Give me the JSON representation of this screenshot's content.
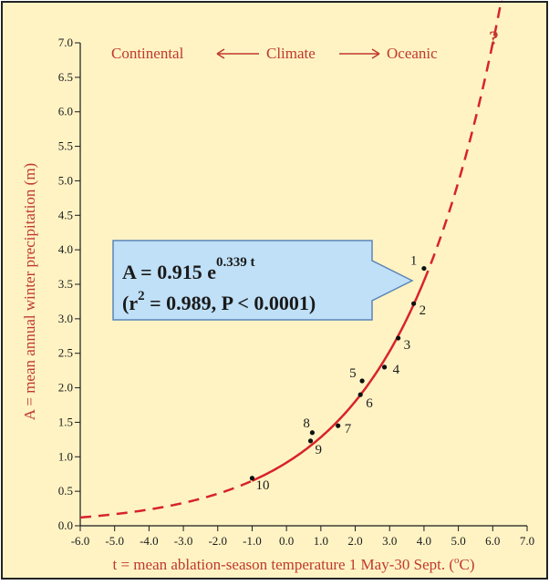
{
  "chart_data": {
    "type": "scatter",
    "xlabel": "t = mean ablation-season temperature 1 May-30 Sept. (°C)",
    "xlabel_main": "t = mean ablation-season temperature 1 May-30 Sept. (",
    "xlabel_o": "o",
    "xlabel_end": "C)",
    "ylabel": "A = mean annual winter precipitation (m)",
    "xlim": [
      -6.0,
      7.0
    ],
    "ylim": [
      0.0,
      7.0
    ],
    "x_ticks": [
      "-6.0",
      "-5.0",
      "-4.0",
      "-3.0",
      "-2.0",
      "-1.0",
      "0.0",
      "1.0",
      "2.0",
      "3.0",
      "4.0",
      "5.0",
      "6.0",
      "7.0"
    ],
    "y_ticks": [
      "0.0",
      "0.5",
      "1.0",
      "1.5",
      "2.0",
      "2.5",
      "3.0",
      "3.5",
      "4.0",
      "4.5",
      "5.0",
      "5.5",
      "6.0",
      "6.5",
      "7.0"
    ],
    "grid": false,
    "series": [
      {
        "points": [
          {
            "label": "1",
            "x": 4.0,
            "y": 3.73
          },
          {
            "label": "2",
            "x": 3.7,
            "y": 3.22
          },
          {
            "label": "3",
            "x": 3.25,
            "y": 2.72
          },
          {
            "label": "4",
            "x": 2.85,
            "y": 2.3
          },
          {
            "label": "5",
            "x": 2.2,
            "y": 2.1
          },
          {
            "label": "6",
            "x": 2.15,
            "y": 1.9
          },
          {
            "label": "7",
            "x": 1.5,
            "y": 1.45
          },
          {
            "label": "8",
            "x": 0.75,
            "y": 1.35
          },
          {
            "label": "9",
            "x": 0.7,
            "y": 1.23
          },
          {
            "label": "10",
            "x": -1.0,
            "y": 0.69
          }
        ]
      }
    ],
    "fit": {
      "a": 0.915,
      "b": 0.339,
      "solid_range": [
        -1.0,
        4.0
      ],
      "dashed_range": [
        -6.0,
        6.85
      ]
    },
    "annotations": {
      "equation_main": "A = 0.915 e",
      "equation_exp": "0.339 t",
      "stats_open": "(r",
      "stats_sup": "2",
      "stats_rest": " = 0.989, P < 0.0001)",
      "question_mark": "?",
      "climate_left": "Continental",
      "climate_mid": "Climate",
      "climate_right": "Oceanic"
    },
    "colors": {
      "background": "#fff3c4",
      "curve": "#d8232a",
      "accent_text": "#c0392b",
      "callout_fill": "#bfe0f7",
      "callout_stroke": "#5b86b8",
      "points": "#111111",
      "axes": "#1a1a1a"
    }
  }
}
